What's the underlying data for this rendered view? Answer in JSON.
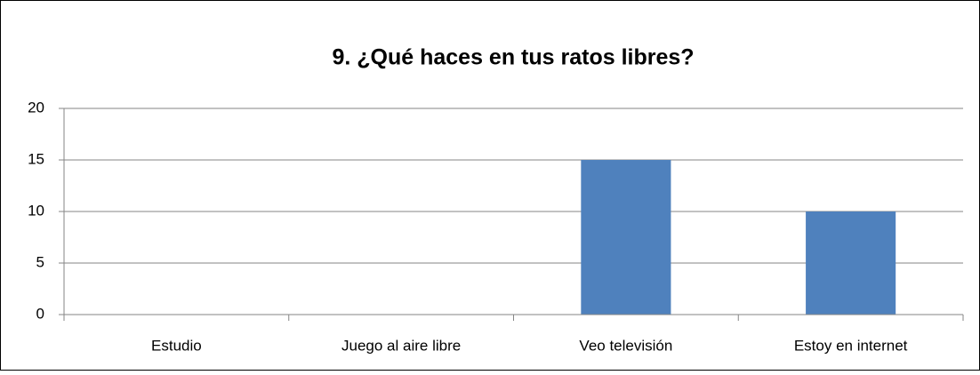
{
  "chart_data": {
    "type": "bar",
    "title": "9. ¿Qué haces en tus ratos libres?",
    "categories": [
      "Estudio",
      "Juego al aire libre",
      "Veo televisión",
      "Estoy en internet"
    ],
    "values": [
      0,
      0,
      15,
      10
    ],
    "color": "#4f81bd",
    "ylim": [
      0,
      20
    ],
    "yticks": [
      0,
      5,
      10,
      15,
      20
    ],
    "grid": true
  }
}
